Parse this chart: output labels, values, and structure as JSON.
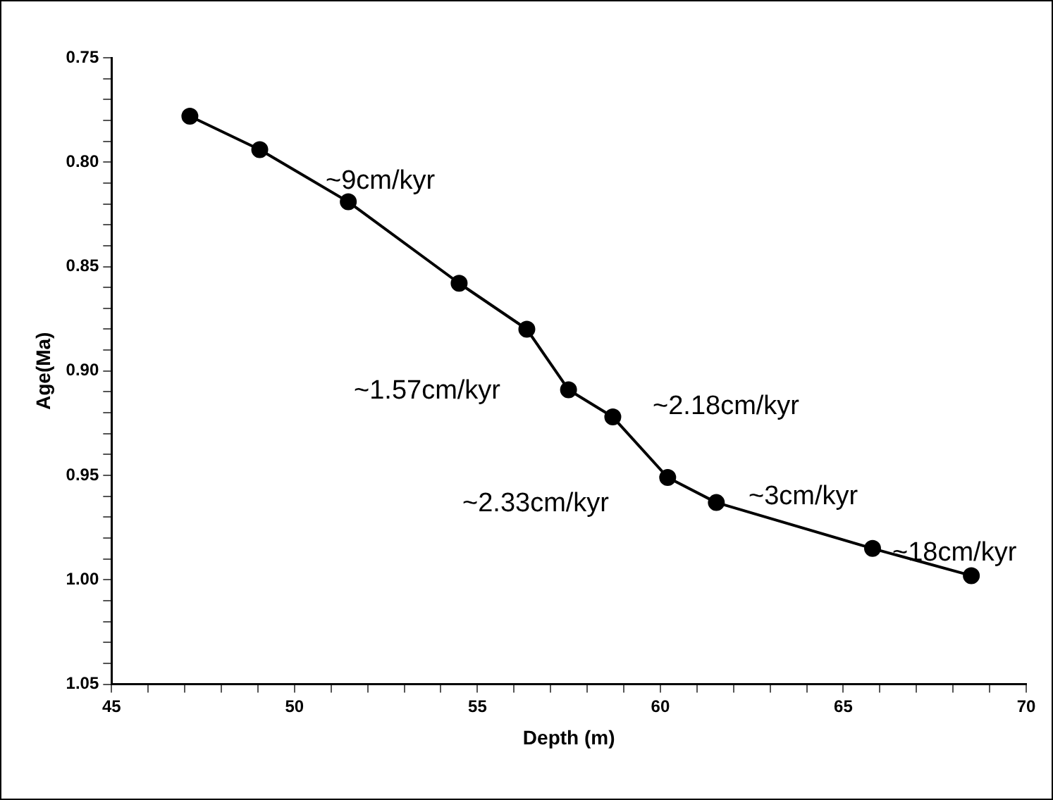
{
  "chart_data": {
    "type": "line",
    "xlabel": "Depth (m)",
    "ylabel": "Age(Ma)",
    "x": [
      47.14,
      49.05,
      51.47,
      54.5,
      56.35,
      57.49,
      58.7,
      60.2,
      61.53,
      65.8,
      68.5
    ],
    "series": [
      {
        "color": "#000000",
        "values": [
          0.778,
          0.794,
          0.819,
          0.858,
          0.88,
          0.909,
          0.922,
          0.951,
          0.963,
          0.985,
          0.998
        ]
      }
    ],
    "xlim": [
      45,
      70
    ],
    "xticks": [
      45,
      {
        "value": 46,
        "label": null
      },
      {
        "value": 47,
        "label": null
      },
      {
        "value": 48,
        "label": null
      },
      {
        "value": 49,
        "label": null
      },
      50,
      {
        "value": 51,
        "label": null
      },
      {
        "value": 52,
        "label": null
      },
      {
        "value": 53,
        "label": null
      },
      {
        "value": 54,
        "label": null
      },
      55,
      {
        "value": 56,
        "label": null
      },
      {
        "value": 57,
        "label": null
      },
      {
        "value": 58,
        "label": null
      },
      {
        "value": 59,
        "label": null
      },
      60,
      {
        "value": 61,
        "label": null
      },
      {
        "value": 62,
        "label": null
      },
      {
        "value": 63,
        "label": null
      },
      {
        "value": 64,
        "label": null
      },
      65,
      {
        "value": 66,
        "label": null
      },
      {
        "value": 67,
        "label": null
      },
      {
        "value": 68,
        "label": null
      },
      {
        "value": 69,
        "label": null
      },
      70
    ],
    "ylim": [
      1.05,
      0.75
    ],
    "yticks": [
      {
        "value": 0.75,
        "label": "0.75"
      },
      {
        "value": 0.76,
        "label": null
      },
      {
        "value": 0.77,
        "label": null
      },
      {
        "value": 0.78,
        "label": null
      },
      {
        "value": 0.79,
        "label": null
      },
      {
        "value": 0.8,
        "label": "0.80"
      },
      {
        "value": 0.81,
        "label": null
      },
      {
        "value": 0.82,
        "label": null
      },
      {
        "value": 0.83,
        "label": null
      },
      {
        "value": 0.84,
        "label": null
      },
      {
        "value": 0.85,
        "label": "0.85"
      },
      {
        "value": 0.86,
        "label": null
      },
      {
        "value": 0.87,
        "label": null
      },
      {
        "value": 0.88,
        "label": null
      },
      {
        "value": 0.89,
        "label": null
      },
      {
        "value": 0.9,
        "label": "0.90"
      },
      {
        "value": 0.91,
        "label": null
      },
      {
        "value": 0.92,
        "label": null
      },
      {
        "value": 0.93,
        "label": null
      },
      {
        "value": 0.94,
        "label": null
      },
      {
        "value": 0.95,
        "label": "0.95"
      },
      {
        "value": 0.96,
        "label": null
      },
      {
        "value": 0.97,
        "label": null
      },
      {
        "value": 0.98,
        "label": null
      },
      {
        "value": 0.99,
        "label": null
      },
      {
        "value": 1.0,
        "label": "1.00"
      },
      {
        "value": 1.01,
        "label": null
      },
      {
        "value": 1.02,
        "label": null
      },
      {
        "value": 1.03,
        "label": null
      },
      {
        "value": 1.04,
        "label": null
      },
      {
        "value": 1.05,
        "label": "1.05"
      }
    ],
    "annotations": [
      "~9cm/kyr",
      "~1.57cm/kyr",
      "~2.18cm/kyr",
      "~2.33cm/kyr",
      "~3cm/kyr",
      "~18cm/kyr"
    ],
    "grid": false,
    "legend": false,
    "marker": "circle",
    "line_style": "solid"
  }
}
